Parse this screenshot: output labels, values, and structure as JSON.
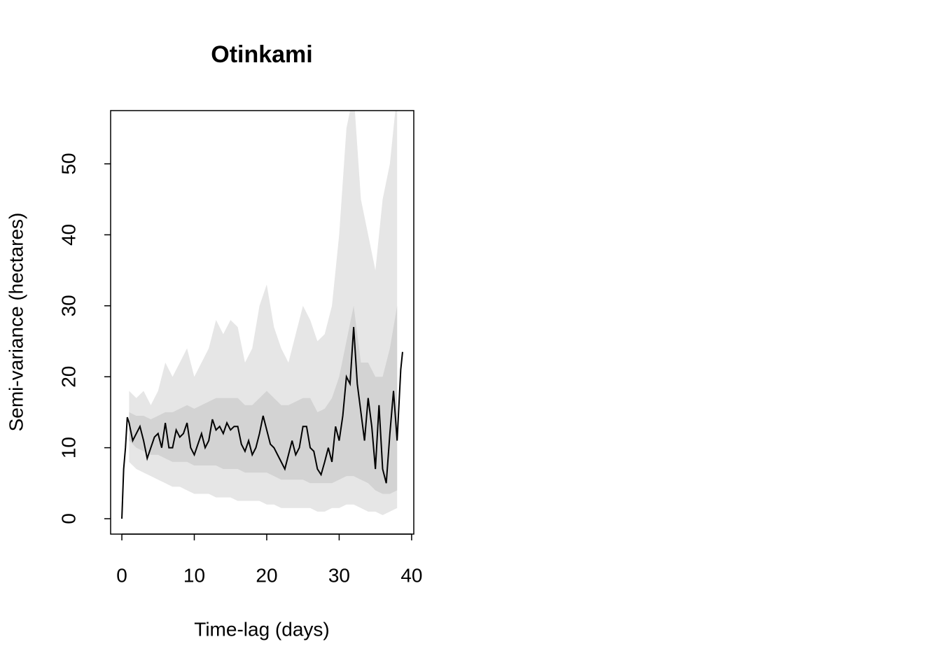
{
  "chart_data": {
    "type": "line",
    "title": "Otinkami",
    "x_label": "Time-lag (days)",
    "y_label": "Semi-variance (hectares)",
    "xlim": [
      -1.55,
      40.3
    ],
    "ylim": [
      -2.17,
      57.5
    ],
    "xticks": [
      0,
      10,
      20,
      30,
      40
    ],
    "yticks": [
      0,
      10,
      20,
      30,
      40,
      50
    ],
    "x": [
      0,
      0.25,
      0.5,
      0.75,
      1,
      1.5,
      2,
      2.5,
      3,
      3.5,
      4,
      4.5,
      5,
      5.5,
      6,
      6.5,
      7,
      7.5,
      8,
      8.5,
      9,
      9.5,
      10,
      10.5,
      11,
      11.5,
      12,
      12.5,
      13,
      13.5,
      14,
      14.5,
      15,
      15.5,
      16,
      16.5,
      17,
      17.5,
      18,
      18.5,
      19,
      19.5,
      20,
      20.5,
      21,
      21.5,
      22,
      22.5,
      23,
      23.5,
      24,
      24.5,
      25,
      25.5,
      26,
      26.5,
      27,
      27.5,
      28,
      28.5,
      29,
      29.5,
      30,
      30.5,
      31,
      31.5,
      32,
      32.5,
      33,
      33.5,
      34,
      34.5,
      35,
      35.5,
      36,
      36.5,
      37,
      37.5,
      38,
      38.5,
      38.75
    ],
    "series": [
      {
        "color": "#000000",
        "values": [
          0,
          7,
          10,
          14.3,
          13.5,
          11,
          12,
          13,
          11,
          8.5,
          10,
          11.5,
          12,
          10,
          13.5,
          10,
          10,
          12.5,
          11.5,
          12,
          13.5,
          10,
          9,
          10.5,
          12,
          10,
          11,
          14,
          12.5,
          13,
          12,
          13.5,
          12.5,
          13,
          13,
          10.5,
          9.5,
          11,
          9,
          10,
          12,
          14.5,
          12.5,
          10.5,
          10,
          9,
          8,
          7,
          9,
          11,
          9,
          10,
          13,
          13,
          10,
          9.5,
          7,
          6.2,
          8,
          10,
          8,
          13,
          11,
          14.5,
          20,
          19,
          27,
          19,
          15,
          11,
          17,
          13,
          7,
          16,
          7,
          5,
          12,
          18,
          11,
          21,
          23.5
        ]
      }
    ],
    "bands": {
      "x": [
        1,
        2,
        3,
        4,
        5,
        6,
        7,
        8,
        9,
        10,
        11,
        12,
        13,
        14,
        15,
        16,
        17,
        18,
        19,
        20,
        21,
        22,
        23,
        24,
        25,
        26,
        27,
        28,
        29,
        30,
        31,
        32,
        33,
        34,
        35,
        36,
        37,
        38
      ],
      "items": [
        {
          "color": "#e6e6e6",
          "lower": [
            8,
            7,
            6.5,
            6,
            5.5,
            5,
            4.5,
            4.5,
            4,
            3.5,
            3.5,
            3.5,
            3,
            3,
            3,
            2.5,
            2.5,
            2.5,
            2.5,
            2,
            2,
            1.5,
            1.5,
            1.5,
            1.5,
            1.5,
            1,
            1,
            1.5,
            1.5,
            2,
            2,
            1.5,
            1,
            1,
            0.5,
            1,
            1.5
          ],
          "upper": [
            18,
            17,
            18,
            16,
            18,
            22,
            20,
            22,
            24,
            20,
            22,
            24,
            28,
            26,
            28,
            27,
            22,
            24,
            30,
            33,
            27,
            24,
            22,
            26,
            30,
            28,
            25,
            26,
            30,
            40,
            55,
            60,
            45,
            40,
            35,
            45,
            50,
            60
          ]
        },
        {
          "color": "#d3d3d3",
          "lower": [
            11,
            10,
            9.5,
            9,
            9,
            8.5,
            8,
            8,
            8,
            7.5,
            7.5,
            7.5,
            7.5,
            7,
            7,
            7,
            6.5,
            6.5,
            6.5,
            6.5,
            6,
            5.5,
            5.5,
            5.5,
            5.5,
            5,
            5,
            5,
            5,
            5.5,
            6,
            6,
            5.5,
            5,
            4,
            3.5,
            3.5,
            4
          ],
          "upper": [
            15,
            14.5,
            14.5,
            14,
            14.5,
            15,
            15,
            15.5,
            16,
            15.5,
            16,
            16.5,
            17,
            17,
            17,
            17,
            16,
            16,
            17,
            18,
            17,
            16,
            16,
            16.5,
            17,
            17,
            15,
            15.5,
            17,
            20,
            25,
            30,
            22,
            22,
            20,
            20,
            24,
            30
          ]
        }
      ]
    }
  }
}
